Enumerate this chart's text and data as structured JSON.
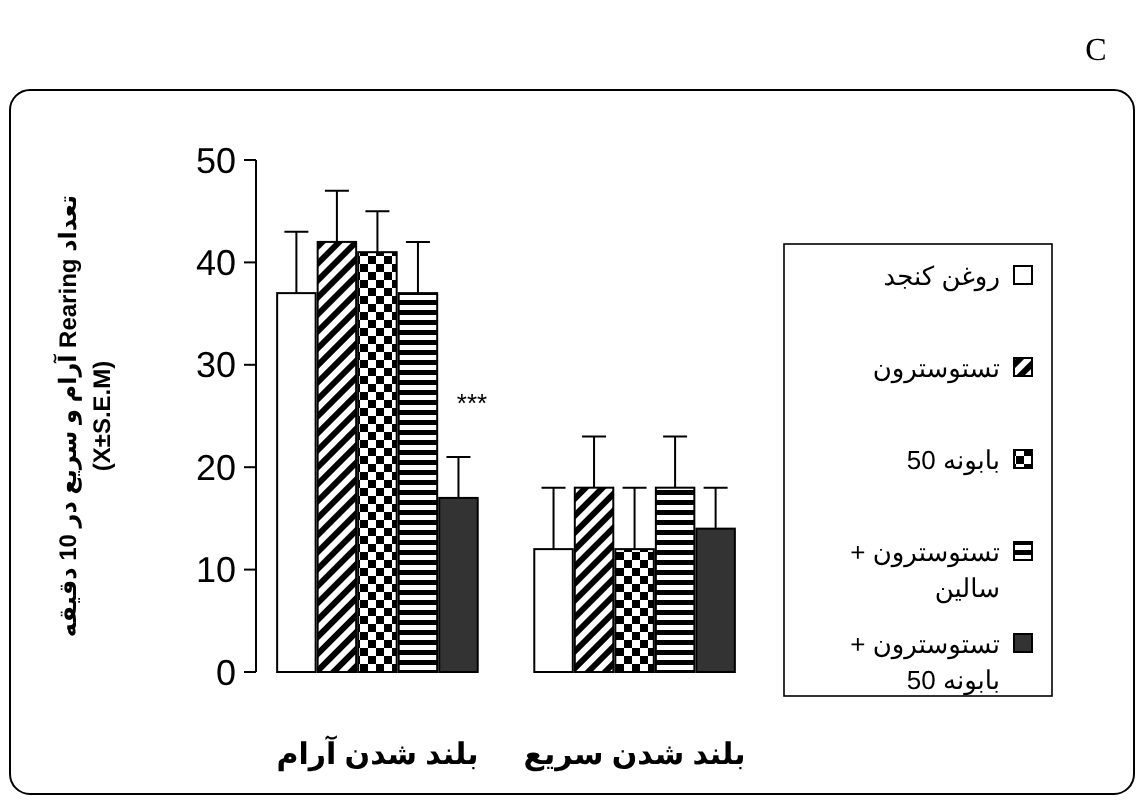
{
  "chart_data": {
    "type": "bar",
    "ylabel": "تعداد Rearing آرام و سریع در 10 دقیقه\n(X±S.E.M)",
    "categories": [
      "بلند شدن آرام",
      "بلند شدن سریع"
    ],
    "series": [
      {
        "name": "روغن کنجد",
        "color": "#ffffff",
        "values": [
          37,
          12
        ],
        "errors": [
          6,
          6
        ]
      },
      {
        "name": "تستوسترون",
        "color": "#000000",
        "values": [
          42,
          18
        ],
        "errors": [
          5,
          5
        ]
      },
      {
        "name": "بابونه 50",
        "color": "#000000",
        "values": [
          41,
          12
        ],
        "errors": [
          4,
          6
        ]
      },
      {
        "name": "تستوسترون + سالین",
        "color": "#000000",
        "values": [
          37,
          18
        ],
        "errors": [
          5,
          5
        ]
      },
      {
        "name": "تستوسترون + بابونه 50",
        "color": "#333333",
        "values": [
          17,
          14
        ],
        "errors": [
          4,
          4
        ]
      }
    ],
    "ylim": [
      0,
      50
    ],
    "yticks": [
      0,
      10,
      20,
      30,
      40,
      50
    ],
    "legend": "right",
    "annotations": [
      "***",
      "C"
    ]
  }
}
